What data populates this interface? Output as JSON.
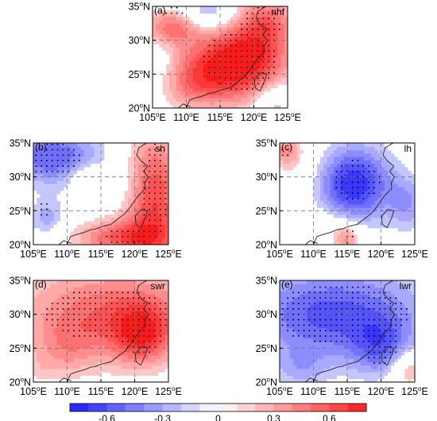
{
  "panels": [
    {
      "id": "a",
      "label": "(a)",
      "var": "nhf"
    },
    {
      "id": "b",
      "label": "(b)",
      "var": "sh"
    },
    {
      "id": "c",
      "label": "(c)",
      "var": "lh"
    },
    {
      "id": "d",
      "label": "(d)",
      "var": "swr"
    },
    {
      "id": "e",
      "label": "(e)",
      "var": "lwr"
    }
  ],
  "axes": {
    "lat_ticks": [
      "20",
      "25",
      "30",
      "35"
    ],
    "lon_ticks": [
      "105",
      "110",
      "115",
      "120",
      "125"
    ],
    "lat_suffix": "N",
    "lon_suffix": "E",
    "degree_mark": "o",
    "lon_range": [
      105,
      125
    ],
    "lat_range": [
      20,
      35
    ],
    "grid": "dashed"
  },
  "colorbar": {
    "ticks": [
      "-0.6",
      "-0.3",
      "0",
      "0.3",
      "0.6"
    ],
    "range": [
      -0.8,
      0.8
    ],
    "colors": {
      "negative": "#1a1aff",
      "neutral": "#ffffff",
      "positive": "#ff1a1a"
    }
  }
}
